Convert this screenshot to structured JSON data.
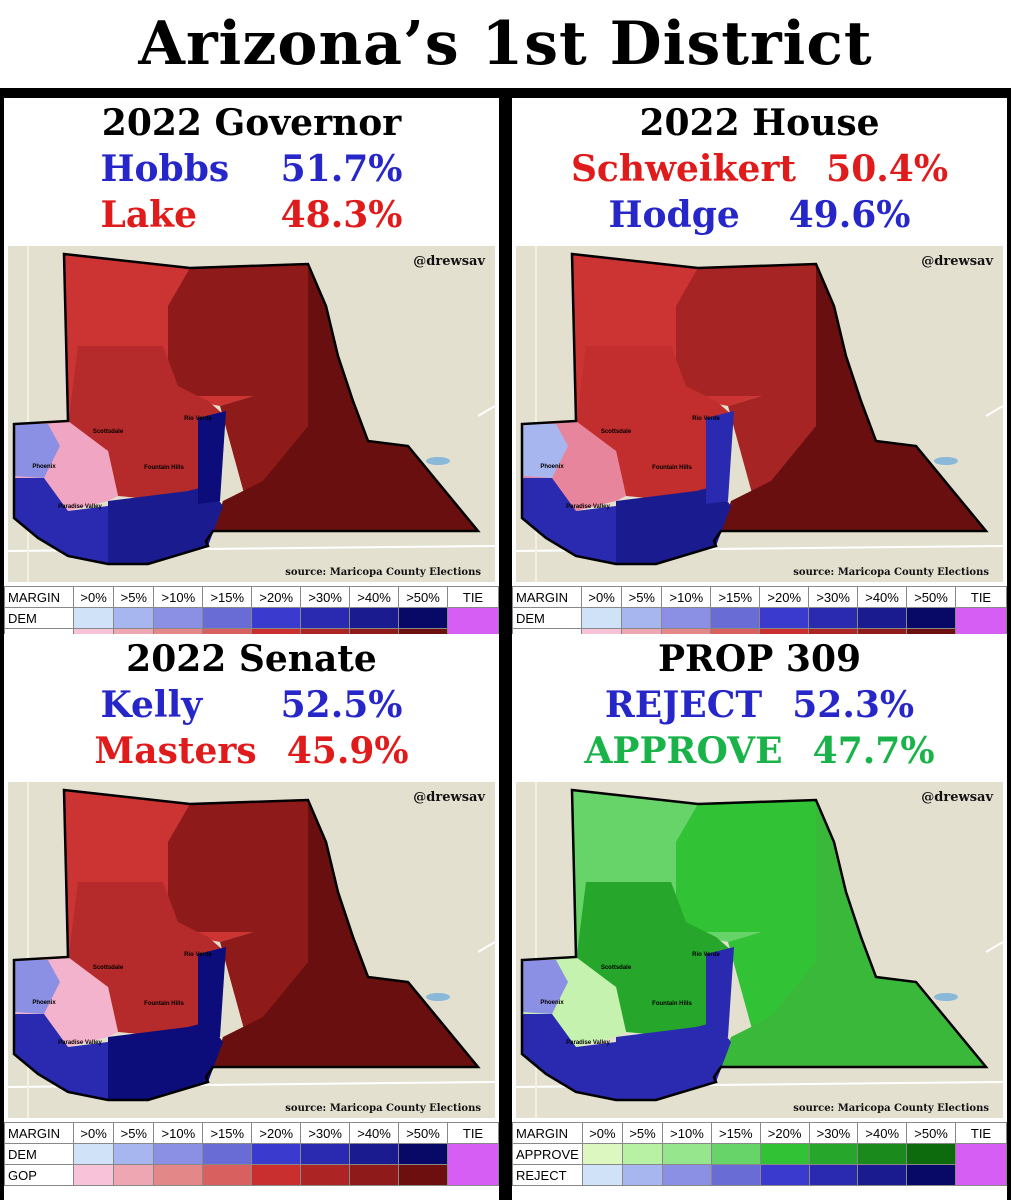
{
  "title": "Arizona’s 1st District",
  "handle": "@drewsav",
  "source": "source: Maricopa County Elections",
  "map_labels": [
    "Rio Verde",
    "Scottsdale",
    "Fountain Hills",
    "Phoenix",
    "Paradise Valley"
  ],
  "legend": {
    "header": [
      "MARGIN",
      ">0%",
      ">5%",
      ">10%",
      ">15%",
      ">20%",
      ">30%",
      ">40%",
      ">50%",
      "TIE"
    ],
    "dem_label": "DEM",
    "gop_label": "GOP",
    "approve_label": "APPROVE",
    "reject_label": "REJECT",
    "dem_colors": [
      "#cfe2f8",
      "#a8b6ef",
      "#8c90e4",
      "#6a6cd6",
      "#3a3acf",
      "#2a2ab0",
      "#1b1b90",
      "#080867"
    ],
    "gop_colors": [
      "#f8c2d8",
      "#eea6b3",
      "#e48789",
      "#d8605e",
      "#c92f2f",
      "#ad2424",
      "#8f1a1a",
      "#6d0f0f"
    ],
    "approve_colors": [
      "#dcf8c0",
      "#b8f0a4",
      "#95e68c",
      "#66d468",
      "#32c235",
      "#26a62a",
      "#1a8a1c",
      "#0d6b0e"
    ],
    "tie_color": "#d65ef5"
  },
  "panels": [
    {
      "title": "2022 Governor",
      "legend_type": "party",
      "candidates": [
        {
          "name": "Hobbs",
          "pct": "51.7%",
          "color": "#2727c9"
        },
        {
          "name": "Lake",
          "pct": "48.3%",
          "color": "#e01b1b"
        }
      ],
      "fills": {
        "north": "#cc3333",
        "east": "#8f1a1a",
        "far_east": "#6a0f0f",
        "center": "#b52a2a",
        "southeast": "#1b1b90",
        "rioverde": "#0c0c7a",
        "west_hi": "#8c90e4",
        "west_lo": "#f0a6c3",
        "southwest": "#2a2ab0"
      }
    },
    {
      "title": "2022 House",
      "legend_type": "party",
      "candidates": [
        {
          "name": "Schweikert",
          "pct": "50.4%",
          "color": "#e01b1b"
        },
        {
          "name": "Hodge",
          "pct": "49.6%",
          "color": "#2727c9"
        }
      ],
      "fills": {
        "north": "#cc3333",
        "east": "#a62424",
        "far_east": "#6a0f0f",
        "center": "#c22d2d",
        "southeast": "#1b1b90",
        "rioverde": "#2a2ab0",
        "west_hi": "#a8b6ef",
        "west_lo": "#e6859c",
        "southwest": "#2a2ab0"
      }
    },
    {
      "title": "2022 Senate",
      "legend_type": "party",
      "candidates": [
        {
          "name": "Kelly",
          "pct": "52.5%",
          "color": "#2727c9"
        },
        {
          "name": "Masters",
          "pct": "45.9%",
          "color": "#e01b1b"
        }
      ],
      "fills": {
        "north": "#cc3333",
        "east": "#8f1a1a",
        "far_east": "#6a0f0f",
        "center": "#b52a2a",
        "southeast": "#0c0c7a",
        "rioverde": "#0c0c7a",
        "west_hi": "#8c90e4",
        "west_lo": "#f3b3cc",
        "southwest": "#2a2ab0"
      }
    },
    {
      "title": "PROP 309",
      "legend_type": "prop",
      "candidates": [
        {
          "name": "REJECT",
          "pct": "52.3%",
          "color": "#2727c9"
        },
        {
          "name": "APPROVE",
          "pct": "47.7%",
          "color": "#19b34a"
        }
      ],
      "fills": {
        "north": "#66d468",
        "east": "#32c235",
        "far_east": "#3ab83a",
        "center": "#26a62a",
        "southeast": "#2a2ab0",
        "rioverde": "#2a2ab0",
        "west_hi": "#8c90e4",
        "west_lo": "#c6f2b0",
        "southwest": "#2a2ab0"
      }
    }
  ]
}
